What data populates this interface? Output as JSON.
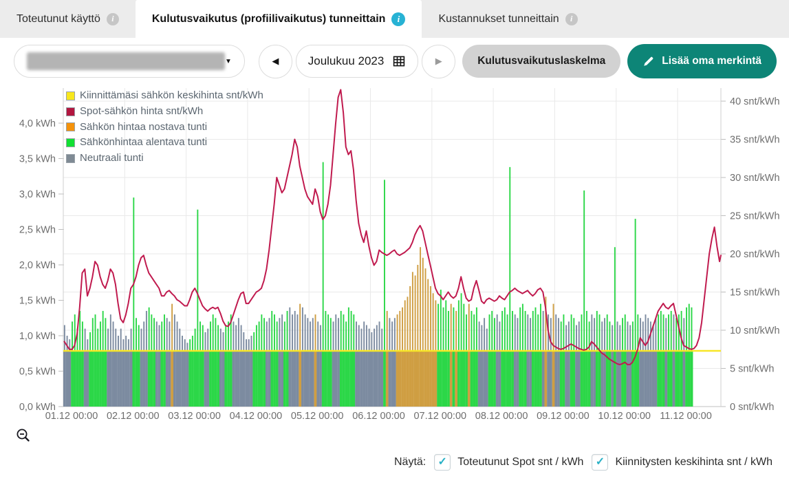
{
  "tabs": [
    {
      "label": "Toteutunut käyttö",
      "active": false
    },
    {
      "label": "Kulutusvaikutus (profiilivaikutus) tunneittain",
      "active": true
    },
    {
      "label": "Kustannukset tunneittain",
      "active": false
    }
  ],
  "toolbar": {
    "period_label": "Joulukuu 2023",
    "calc_button_label": "Kulutusvaikutuslaskelma",
    "add_note_button_label": "Lisää oma merkintä"
  },
  "icons": {
    "prev": "◀",
    "next": "▶",
    "dropdown_caret": "▼",
    "info": "i",
    "check": "✓"
  },
  "footer": {
    "show_label": "Näytä:",
    "checkboxes": [
      {
        "label": "Toteutunut Spot snt / kWh",
        "checked": true
      },
      {
        "label": "Kiinnitysten keskihinta snt / kWh",
        "checked": true
      }
    ]
  },
  "chart_data": {
    "type": "bar",
    "subtype": "hourly consumption columns (kWh, left axis) + spot price line (snt/kWh, right axis) + fixed average price horizontal line",
    "title": "",
    "legend_position": "top-left",
    "grid": true,
    "legend": [
      {
        "label": "Kiinnittämäsi sähkön keskihinta snt/kWh",
        "color": "#f8e71c",
        "type": "line"
      },
      {
        "label": "Spot-sähkön hinta snt/kWh",
        "color": "#b2163f",
        "type": "line"
      },
      {
        "label": "Sähkön hintaa nostava tunti",
        "color": "#f5920a",
        "type": "bar"
      },
      {
        "label": "Sähkönhintaa alentava tunti",
        "color": "#12e033",
        "type": "bar"
      },
      {
        "label": "Neutraali tunti",
        "color": "#7f8a94",
        "type": "bar"
      }
    ],
    "left_axis": {
      "unit": "kWh",
      "tick_values": [
        0,
        0.5,
        1.0,
        1.5,
        2.0,
        2.5,
        3.0,
        3.5,
        4.0
      ],
      "tick_labels": [
        "0,0 kWh",
        "0,5 kWh",
        "1,0 kWh",
        "1,5 kWh",
        "2,0 kWh",
        "2,5 kWh",
        "3,0 kWh",
        "3,5 kWh",
        "4,0 kWh"
      ],
      "min": 0,
      "max": 4.5
    },
    "right_axis": {
      "unit": "snt/kWh",
      "tick_values": [
        0,
        5,
        10,
        15,
        20,
        25,
        30,
        35,
        40
      ],
      "tick_labels": [
        "0 snt/kWh",
        "5 snt/kWh",
        "10 snt/kWh",
        "15 snt/kWh",
        "20 snt/kWh",
        "25 snt/kWh",
        "30 snt/kWh",
        "35 snt/kWh",
        "40 snt/kWh"
      ],
      "min": 0,
      "max": 41.7
    },
    "x_axis": {
      "labels": [
        "01.12 00:00",
        "02.12 00:00",
        "03.12 00:00",
        "04.12 00:00",
        "05.12 00:00",
        "06.12 00:00",
        "07.12 00:00",
        "08.12 00:00",
        "09.12 00:00",
        "10.12 00:00",
        "11.12 00:00"
      ],
      "hours_per_label": 24,
      "start": "01.12 00:00",
      "resolution_hours": 1
    },
    "fixed_price_snt": 7.3,
    "colors": {
      "spot_line": "#c01a4e",
      "fixed_line": "#f7e626",
      "grid": "#e9e9e9"
    },
    "bar_colors": {
      "0": "#7c8ba0",
      "1": "#2cd748",
      "2": "#cf9e42"
    },
    "bar_classes": {
      "0": "Neutraali tunti",
      "1": "Sähkönhintaa alentava tunti",
      "2": "Sähkön hintaa nostava tunti"
    },
    "bars_kwh": [
      [
        1.15,
        0
      ],
      [
        1.0,
        0
      ],
      [
        0.95,
        0
      ],
      [
        1.2,
        1
      ],
      [
        1.3,
        1
      ],
      [
        1.1,
        1
      ],
      [
        1.35,
        1
      ],
      [
        1.2,
        1
      ],
      [
        1.1,
        0
      ],
      [
        0.95,
        0
      ],
      [
        1.05,
        1
      ],
      [
        1.25,
        1
      ],
      [
        1.3,
        1
      ],
      [
        1.1,
        1
      ],
      [
        1.2,
        1
      ],
      [
        1.35,
        1
      ],
      [
        1.25,
        1
      ],
      [
        1.1,
        0
      ],
      [
        1.3,
        0
      ],
      [
        1.2,
        0
      ],
      [
        1.1,
        0
      ],
      [
        1.0,
        0
      ],
      [
        1.1,
        0
      ],
      [
        0.95,
        0
      ],
      [
        1.0,
        0
      ],
      [
        0.95,
        0
      ],
      [
        1.1,
        0
      ],
      [
        2.95,
        1
      ],
      [
        1.25,
        1
      ],
      [
        1.15,
        1
      ],
      [
        1.1,
        0
      ],
      [
        1.2,
        0
      ],
      [
        1.35,
        0
      ],
      [
        1.4,
        1
      ],
      [
        1.3,
        1
      ],
      [
        1.25,
        1
      ],
      [
        1.2,
        0
      ],
      [
        1.15,
        0
      ],
      [
        1.2,
        1
      ],
      [
        1.3,
        1
      ],
      [
        1.25,
        0
      ],
      [
        1.2,
        0
      ],
      [
        1.45,
        2
      ],
      [
        1.3,
        0
      ],
      [
        1.2,
        0
      ],
      [
        1.1,
        0
      ],
      [
        1.0,
        0
      ],
      [
        0.95,
        0
      ],
      [
        0.9,
        0
      ],
      [
        0.95,
        1
      ],
      [
        1.0,
        1
      ],
      [
        1.1,
        1
      ],
      [
        2.78,
        1
      ],
      [
        1.2,
        1
      ],
      [
        1.15,
        1
      ],
      [
        1.05,
        0
      ],
      [
        1.1,
        0
      ],
      [
        1.2,
        1
      ],
      [
        1.3,
        1
      ],
      [
        1.25,
        1
      ],
      [
        1.15,
        1
      ],
      [
        1.1,
        0
      ],
      [
        1.05,
        0
      ],
      [
        1.15,
        1
      ],
      [
        1.2,
        1
      ],
      [
        1.3,
        1
      ],
      [
        1.2,
        0
      ],
      [
        1.15,
        0
      ],
      [
        1.25,
        0
      ],
      [
        1.15,
        0
      ],
      [
        1.05,
        0
      ],
      [
        0.95,
        0
      ],
      [
        0.95,
        0
      ],
      [
        1.0,
        0
      ],
      [
        1.05,
        1
      ],
      [
        1.15,
        1
      ],
      [
        1.2,
        1
      ],
      [
        1.3,
        1
      ],
      [
        1.25,
        1
      ],
      [
        1.2,
        0
      ],
      [
        1.25,
        0
      ],
      [
        1.35,
        1
      ],
      [
        1.3,
        1
      ],
      [
        1.2,
        1
      ],
      [
        1.25,
        0
      ],
      [
        1.3,
        0
      ],
      [
        1.2,
        1
      ],
      [
        1.35,
        1
      ],
      [
        1.4,
        0
      ],
      [
        1.3,
        0
      ],
      [
        1.35,
        0
      ],
      [
        1.3,
        0
      ],
      [
        1.45,
        2
      ],
      [
        1.4,
        0
      ],
      [
        1.3,
        0
      ],
      [
        1.25,
        0
      ],
      [
        1.2,
        0
      ],
      [
        1.25,
        0
      ],
      [
        1.3,
        2
      ],
      [
        1.2,
        0
      ],
      [
        1.15,
        0
      ],
      [
        3.45,
        1
      ],
      [
        1.35,
        1
      ],
      [
        1.3,
        1
      ],
      [
        1.25,
        1
      ],
      [
        1.2,
        0
      ],
      [
        1.3,
        0
      ],
      [
        1.25,
        0
      ],
      [
        1.35,
        1
      ],
      [
        1.3,
        1
      ],
      [
        1.2,
        1
      ],
      [
        1.4,
        1
      ],
      [
        1.35,
        1
      ],
      [
        1.3,
        1
      ],
      [
        1.2,
        0
      ],
      [
        1.15,
        0
      ],
      [
        1.1,
        0
      ],
      [
        1.2,
        0
      ],
      [
        1.15,
        0
      ],
      [
        1.1,
        0
      ],
      [
        1.05,
        0
      ],
      [
        1.1,
        0
      ],
      [
        1.15,
        0
      ],
      [
        1.2,
        0
      ],
      [
        1.1,
        0
      ],
      [
        3.2,
        1
      ],
      [
        1.35,
        2
      ],
      [
        1.25,
        0
      ],
      [
        1.2,
        0
      ],
      [
        1.25,
        0
      ],
      [
        1.3,
        2
      ],
      [
        1.35,
        2
      ],
      [
        1.4,
        2
      ],
      [
        1.5,
        2
      ],
      [
        1.55,
        2
      ],
      [
        1.7,
        2
      ],
      [
        1.9,
        2
      ],
      [
        1.85,
        2
      ],
      [
        2.0,
        2
      ],
      [
        2.25,
        2
      ],
      [
        2.1,
        2
      ],
      [
        1.95,
        2
      ],
      [
        1.8,
        2
      ],
      [
        1.7,
        2
      ],
      [
        1.6,
        2
      ],
      [
        1.5,
        2
      ],
      [
        1.45,
        1
      ],
      [
        1.65,
        1
      ],
      [
        1.4,
        1
      ],
      [
        1.5,
        1
      ],
      [
        1.35,
        1
      ],
      [
        1.45,
        2
      ],
      [
        1.4,
        1
      ],
      [
        1.35,
        2
      ],
      [
        1.5,
        1
      ],
      [
        1.6,
        1
      ],
      [
        1.45,
        1
      ],
      [
        1.3,
        1
      ],
      [
        1.45,
        2
      ],
      [
        1.35,
        1
      ],
      [
        1.3,
        1
      ],
      [
        1.4,
        1
      ],
      [
        1.2,
        0
      ],
      [
        1.15,
        0
      ],
      [
        1.25,
        0
      ],
      [
        1.1,
        0
      ],
      [
        1.3,
        1
      ],
      [
        1.35,
        1
      ],
      [
        1.25,
        1
      ],
      [
        1.3,
        0
      ],
      [
        1.2,
        0
      ],
      [
        1.35,
        1
      ],
      [
        1.4,
        1
      ],
      [
        1.3,
        1
      ],
      [
        3.38,
        1
      ],
      [
        1.35,
        1
      ],
      [
        1.3,
        0
      ],
      [
        1.25,
        0
      ],
      [
        1.4,
        1
      ],
      [
        1.45,
        1
      ],
      [
        1.35,
        1
      ],
      [
        1.3,
        0
      ],
      [
        1.25,
        0
      ],
      [
        1.35,
        1
      ],
      [
        1.4,
        1
      ],
      [
        1.3,
        1
      ],
      [
        1.45,
        1
      ],
      [
        1.35,
        0
      ],
      [
        1.55,
        2
      ],
      [
        1.3,
        0
      ],
      [
        1.25,
        0
      ],
      [
        1.45,
        2
      ],
      [
        1.3,
        0
      ],
      [
        1.25,
        0
      ],
      [
        1.2,
        1
      ],
      [
        1.3,
        1
      ],
      [
        1.15,
        0
      ],
      [
        1.2,
        0
      ],
      [
        1.3,
        1
      ],
      [
        1.25,
        1
      ],
      [
        1.15,
        0
      ],
      [
        1.2,
        0
      ],
      [
        1.3,
        1
      ],
      [
        3.05,
        1
      ],
      [
        1.35,
        1
      ],
      [
        1.2,
        1
      ],
      [
        1.3,
        0
      ],
      [
        1.25,
        0
      ],
      [
        1.35,
        1
      ],
      [
        1.3,
        1
      ],
      [
        1.2,
        0
      ],
      [
        1.25,
        0
      ],
      [
        1.3,
        1
      ],
      [
        1.2,
        1
      ],
      [
        1.15,
        0
      ],
      [
        2.25,
        1
      ],
      [
        1.2,
        0
      ],
      [
        1.15,
        0
      ],
      [
        1.25,
        1
      ],
      [
        1.3,
        1
      ],
      [
        1.2,
        0
      ],
      [
        1.15,
        0
      ],
      [
        1.2,
        1
      ],
      [
        2.65,
        1
      ],
      [
        1.3,
        1
      ],
      [
        1.25,
        0
      ],
      [
        1.2,
        0
      ],
      [
        1.3,
        0
      ],
      [
        1.25,
        0
      ],
      [
        1.2,
        0
      ],
      [
        1.15,
        0
      ],
      [
        1.25,
        0
      ],
      [
        1.3,
        1
      ],
      [
        1.35,
        1
      ],
      [
        1.3,
        1
      ],
      [
        1.25,
        0
      ],
      [
        1.3,
        1
      ],
      [
        1.35,
        1
      ],
      [
        1.3,
        0
      ],
      [
        1.25,
        1
      ],
      [
        1.3,
        1
      ],
      [
        1.35,
        1
      ],
      [
        1.25,
        0
      ],
      [
        1.4,
        1
      ],
      [
        1.45,
        1
      ],
      [
        1.4,
        1
      ]
    ],
    "spot_snt": [
      8.5,
      8,
      7.5,
      7.5,
      8,
      9.5,
      13,
      17.5,
      18,
      14.5,
      15.5,
      17,
      19,
      18.5,
      17,
      16,
      15.5,
      16.5,
      18,
      17.5,
      16,
      13.5,
      11.5,
      11,
      12,
      13.5,
      15.5,
      16,
      17,
      18.5,
      19.5,
      19.8,
      18.5,
      17.5,
      17,
      16.5,
      16,
      15.5,
      14.5,
      14.5,
      15,
      15.2,
      14.8,
      14.5,
      14,
      13.8,
      13.5,
      13.2,
      13.2,
      14,
      15,
      15.5,
      14.8,
      14,
      13.2,
      12.8,
      12.5,
      12.8,
      13,
      12.8,
      13,
      12.2,
      11.2,
      10.6,
      10.5,
      11,
      12,
      13,
      14,
      14.8,
      15,
      13.5,
      13.5,
      14,
      14.5,
      15,
      15.2,
      15.5,
      16.5,
      18,
      20.5,
      23.5,
      26.5,
      30,
      29,
      28,
      28.5,
      30,
      31.5,
      33,
      35,
      34,
      31.5,
      30,
      28.5,
      27.5,
      27,
      26.5,
      28.5,
      27.5,
      25.5,
      24.5,
      25,
      26.5,
      29,
      33,
      37,
      40.5,
      41.5,
      38.5,
      34,
      33,
      33.5,
      31,
      27,
      24,
      22.5,
      21.5,
      23,
      21,
      19.5,
      18.5,
      19,
      20.5,
      20.2,
      20,
      19.8,
      20,
      20.3,
      20.5,
      20,
      19.8,
      20,
      20.2,
      20.5,
      20.8,
      21.5,
      22.5,
      23.2,
      23.7,
      23,
      21.5,
      20,
      18.5,
      17,
      15.5,
      14.8,
      14.5,
      14,
      14.5,
      15,
      14.5,
      14.2,
      14.5,
      15.5,
      17,
      15.5,
      14.2,
      13.8,
      14,
      15.5,
      16.5,
      15.2,
      13.8,
      13.5,
      14,
      14.2,
      14,
      13.8,
      14,
      14.5,
      14.2,
      14,
      14.5,
      15,
      15.2,
      15.5,
      15.2,
      15,
      14.8,
      15,
      15.2,
      14.8,
      14.5,
      14.8,
      15.3,
      15.5,
      15,
      13,
      10,
      8.5,
      8,
      7.8,
      7.6,
      7.5,
      7.6,
      7.8,
      8,
      8.2,
      8,
      7.8,
      7.6,
      7.5,
      7.4,
      7.5,
      7.8,
      8.5,
      8.2,
      7.8,
      7.4,
      7,
      6.8,
      6.5,
      6.2,
      6,
      5.8,
      5.6,
      5.5,
      5.6,
      5.8,
      5.5,
      5.5,
      5.8,
      6.5,
      7.5,
      9,
      8.5,
      8,
      8.5,
      9.5,
      10.5,
      11.5,
      12.5,
      13,
      13.5,
      13,
      12.8,
      13.2,
      13.5,
      12,
      10.5,
      9,
      8,
      7.8,
      7.6,
      7.5,
      7.6,
      8,
      9,
      11,
      14,
      17,
      20,
      22,
      23.5,
      21,
      19,
      19.8
    ]
  }
}
